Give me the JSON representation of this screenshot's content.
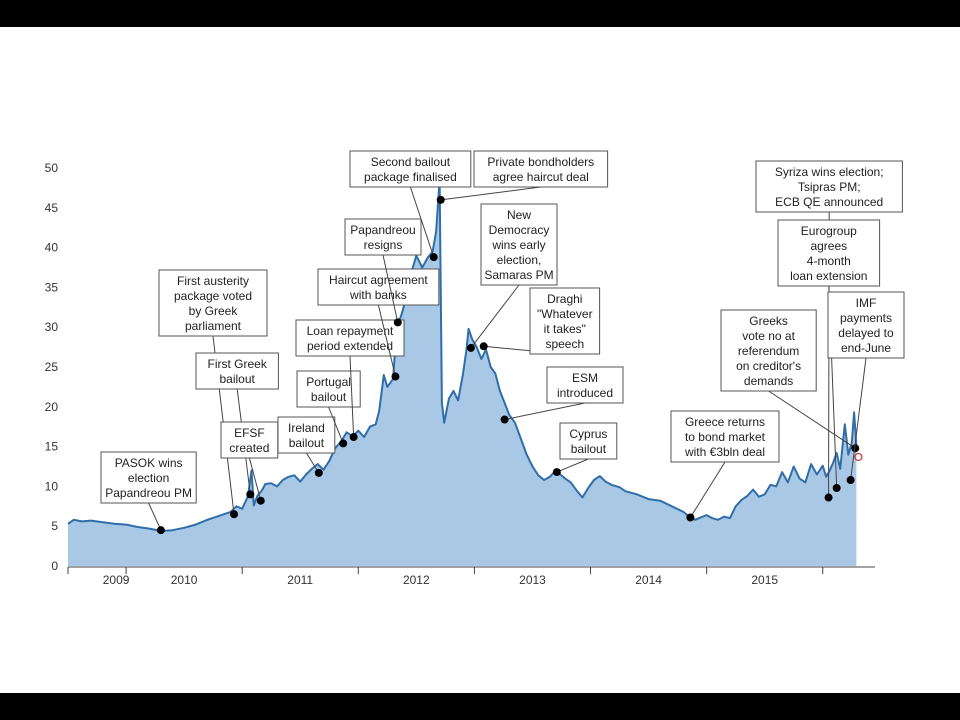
{
  "chart_data": {
    "type": "area",
    "title": "",
    "xlabel": "",
    "ylabel": "",
    "ylim": [
      0,
      50
    ],
    "yticks": [
      0,
      5,
      10,
      15,
      20,
      25,
      30,
      35,
      40,
      45,
      50
    ],
    "xlim": [
      2008.5,
      2015.45
    ],
    "years": [
      "2009",
      "2010",
      "2011",
      "2012",
      "2013",
      "2014",
      "2015"
    ],
    "grid": false,
    "legend": "none",
    "colors": {
      "line": "#2f6ea8",
      "fill": "#a9c8e6",
      "marker": "#000000"
    },
    "series": [
      {
        "values": [
          [
            2008.5,
            5.3
          ],
          [
            2008.55,
            5.8
          ],
          [
            2008.62,
            5.6
          ],
          [
            2008.7,
            5.7
          ],
          [
            2008.8,
            5.5
          ],
          [
            2008.9,
            5.3
          ],
          [
            2009.0,
            5.2
          ],
          [
            2009.1,
            4.9
          ],
          [
            2009.2,
            4.7
          ],
          [
            2009.3,
            4.4
          ],
          [
            2009.4,
            4.5
          ],
          [
            2009.5,
            4.8
          ],
          [
            2009.6,
            5.2
          ],
          [
            2009.7,
            5.8
          ],
          [
            2009.8,
            6.3
          ],
          [
            2009.9,
            6.8
          ],
          [
            2009.95,
            7.5
          ],
          [
            2010.0,
            7.2
          ],
          [
            2010.05,
            8.8
          ],
          [
            2010.08,
            12.0
          ],
          [
            2010.1,
            7.6
          ],
          [
            2010.13,
            8.8
          ],
          [
            2010.17,
            9.5
          ],
          [
            2010.2,
            10.3
          ],
          [
            2010.25,
            10.4
          ],
          [
            2010.3,
            10.0
          ],
          [
            2010.35,
            10.8
          ],
          [
            2010.4,
            11.2
          ],
          [
            2010.45,
            11.4
          ],
          [
            2010.5,
            10.6
          ],
          [
            2010.55,
            11.5
          ],
          [
            2010.6,
            12.2
          ],
          [
            2010.65,
            12.8
          ],
          [
            2010.7,
            12.1
          ],
          [
            2010.75,
            13.2
          ],
          [
            2010.8,
            14.8
          ],
          [
            2010.85,
            15.6
          ],
          [
            2010.9,
            16.8
          ],
          [
            2010.95,
            16.3
          ],
          [
            2011.0,
            17.0
          ],
          [
            2011.05,
            16.2
          ],
          [
            2011.1,
            17.5
          ],
          [
            2011.15,
            17.8
          ],
          [
            2011.18,
            19.5
          ],
          [
            2011.22,
            24.0
          ],
          [
            2011.25,
            22.5
          ],
          [
            2011.3,
            23.5
          ],
          [
            2011.33,
            30.0
          ],
          [
            2011.37,
            31.5
          ],
          [
            2011.4,
            33.0
          ],
          [
            2011.45,
            36.5
          ],
          [
            2011.5,
            39.0
          ],
          [
            2011.55,
            37.5
          ],
          [
            2011.6,
            38.8
          ],
          [
            2011.64,
            39.5
          ],
          [
            2011.67,
            42.0
          ],
          [
            2011.7,
            48.5
          ],
          [
            2011.72,
            20.5
          ],
          [
            2011.74,
            18.0
          ],
          [
            2011.78,
            21.0
          ],
          [
            2011.82,
            22.0
          ],
          [
            2011.86,
            20.8
          ],
          [
            2011.9,
            24.0
          ],
          [
            2011.93,
            27.0
          ],
          [
            2011.95,
            29.8
          ],
          [
            2011.98,
            28.5
          ],
          [
            2012.02,
            27.5
          ],
          [
            2012.06,
            26.0
          ],
          [
            2012.1,
            27.2
          ],
          [
            2012.14,
            25.0
          ],
          [
            2012.18,
            24.2
          ],
          [
            2012.22,
            22.0
          ],
          [
            2012.26,
            20.5
          ],
          [
            2012.3,
            19.0
          ],
          [
            2012.35,
            18.0
          ],
          [
            2012.4,
            16.0
          ],
          [
            2012.45,
            14.0
          ],
          [
            2012.5,
            12.5
          ],
          [
            2012.55,
            11.4
          ],
          [
            2012.6,
            10.8
          ],
          [
            2012.65,
            11.2
          ],
          [
            2012.7,
            12.0
          ],
          [
            2012.74,
            11.5
          ],
          [
            2012.78,
            11.0
          ],
          [
            2012.83,
            10.5
          ],
          [
            2012.88,
            9.5
          ],
          [
            2012.93,
            8.6
          ],
          [
            2012.98,
            9.8
          ],
          [
            2013.03,
            10.8
          ],
          [
            2013.08,
            11.3
          ],
          [
            2013.13,
            10.6
          ],
          [
            2013.18,
            10.2
          ],
          [
            2013.25,
            9.9
          ],
          [
            2013.3,
            9.4
          ],
          [
            2013.4,
            9.0
          ],
          [
            2013.5,
            8.4
          ],
          [
            2013.6,
            8.2
          ],
          [
            2013.7,
            7.5
          ],
          [
            2013.8,
            6.8
          ],
          [
            2013.85,
            6.2
          ],
          [
            2013.9,
            5.8
          ],
          [
            2013.95,
            6.1
          ],
          [
            2014.0,
            6.4
          ],
          [
            2014.05,
            6.0
          ],
          [
            2014.1,
            5.8
          ],
          [
            2014.15,
            6.2
          ],
          [
            2014.2,
            6.0
          ],
          [
            2014.25,
            7.5
          ],
          [
            2014.3,
            8.3
          ],
          [
            2014.35,
            8.8
          ],
          [
            2014.4,
            9.6
          ],
          [
            2014.45,
            8.7
          ],
          [
            2014.5,
            9.0
          ],
          [
            2014.55,
            10.2
          ],
          [
            2014.6,
            10.0
          ],
          [
            2014.65,
            11.8
          ],
          [
            2014.7,
            10.5
          ],
          [
            2014.75,
            12.5
          ],
          [
            2014.8,
            11.0
          ],
          [
            2014.85,
            10.5
          ],
          [
            2014.9,
            12.8
          ],
          [
            2014.95,
            11.5
          ],
          [
            2015.0,
            12.6
          ],
          [
            2015.03,
            11.2
          ],
          [
            2015.06,
            12.0
          ],
          [
            2015.09,
            13.0
          ],
          [
            2015.12,
            14.2
          ],
          [
            2015.15,
            12.2
          ],
          [
            2015.19,
            17.8
          ],
          [
            2015.22,
            14.0
          ],
          [
            2015.25,
            15.5
          ],
          [
            2015.27,
            19.3
          ],
          [
            2015.29,
            15.0
          ]
        ]
      }
    ],
    "annotations": [
      {
        "text": [
          "PASOK wins",
          "election",
          "Papandreou PM"
        ],
        "x": 2009.3,
        "y": 4.5
      },
      {
        "text": [
          "First austerity",
          "package voted",
          "by Greek",
          "parliament"
        ],
        "x": 2009.93,
        "y": 6.5
      },
      {
        "text": [
          "First Greek",
          "bailout"
        ],
        "x": 2010.07,
        "y": 9.0
      },
      {
        "text": [
          "EFSF",
          "created"
        ],
        "x": 2010.16,
        "y": 8.2
      },
      {
        "text": [
          "Ireland",
          "bailout"
        ],
        "x": 2010.66,
        "y": 11.7
      },
      {
        "text": [
          "Portugal",
          "bailout"
        ],
        "x": 2010.87,
        "y": 15.4
      },
      {
        "text": [
          "Loan repayment",
          "period extended"
        ],
        "x": 2010.96,
        "y": 16.2
      },
      {
        "text": [
          "Haircut agreement",
          "with banks"
        ],
        "x": 2011.32,
        "y": 23.8
      },
      {
        "text": [
          "Papandreou",
          "resigns"
        ],
        "x": 2011.34,
        "y": 30.6
      },
      {
        "text": [
          "Second bailout",
          "package finalised"
        ],
        "x": 2011.65,
        "y": 38.8
      },
      {
        "text": [
          "Private bondholders",
          "agree haircut deal"
        ],
        "x": 2011.71,
        "y": 46.0
      },
      {
        "text": [
          "New",
          "Democracy",
          "wins early",
          "election,",
          "Samaras PM"
        ],
        "x": 2011.97,
        "y": 27.4
      },
      {
        "text": [
          "Draghi",
          "\"Whatever",
          "it takes\"",
          "speech"
        ],
        "x": 2012.08,
        "y": 27.6
      },
      {
        "text": [
          "ESM",
          "introduced"
        ],
        "x": 2012.26,
        "y": 18.4
      },
      {
        "text": [
          "Cyprus",
          "bailout"
        ],
        "x": 2012.71,
        "y": 11.8
      },
      {
        "text": [
          "Greece returns",
          "to bond market",
          "with €3bln deal"
        ],
        "x": 2013.86,
        "y": 6.1
      },
      {
        "text": [
          "Greeks",
          "vote no at",
          "referendum",
          "on creditor's",
          "demands"
        ],
        "x": 2015.28,
        "y": 14.8
      },
      {
        "text": [
          "Syriza wins election;",
          "Tsipras PM;",
          "ECB QE announced"
        ],
        "x": 2015.05,
        "y": 8.6
      },
      {
        "text": [
          "Eurogroup",
          "agrees",
          "4-month",
          "loan extension"
        ],
        "x": 2015.12,
        "y": 9.8
      },
      {
        "text": [
          "IMF",
          "payments",
          "delayed to",
          "end-June"
        ],
        "x": 2015.24,
        "y": 10.8
      }
    ]
  }
}
